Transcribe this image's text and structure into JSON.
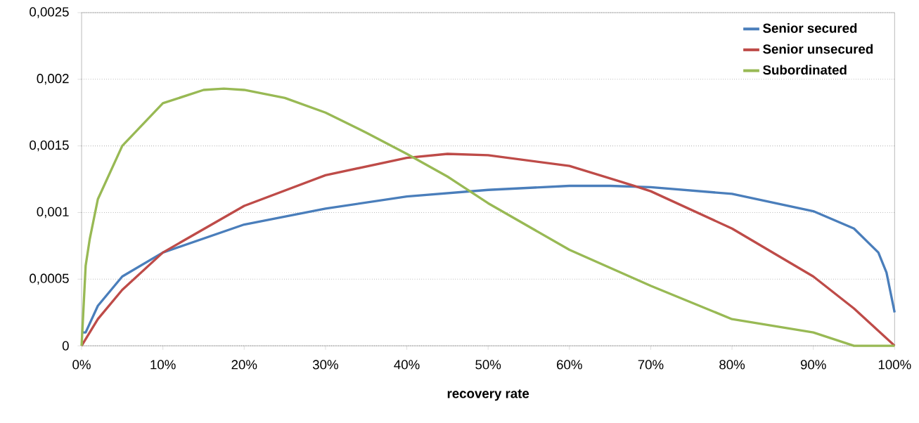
{
  "chart_data": {
    "type": "line",
    "xlabel": "recovery rate",
    "xlim": [
      0,
      1
    ],
    "ylim": [
      0,
      0.0025
    ],
    "xticks": [
      {
        "value": 0,
        "label": "0%"
      },
      {
        "value": 0.1,
        "label": "10%"
      },
      {
        "value": 0.2,
        "label": "20%"
      },
      {
        "value": 0.3,
        "label": "30%"
      },
      {
        "value": 0.4,
        "label": "40%"
      },
      {
        "value": 0.5,
        "label": "50%"
      },
      {
        "value": 0.6,
        "label": "60%"
      },
      {
        "value": 0.7,
        "label": "70%"
      },
      {
        "value": 0.8,
        "label": "80%"
      },
      {
        "value": 0.9,
        "label": "90%"
      },
      {
        "value": 1,
        "label": "100%"
      }
    ],
    "yticks": [
      0,
      {
        "value": 0.0005,
        "label": "0,0005"
      },
      {
        "value": 0.001,
        "label": "0,001"
      },
      {
        "value": 0.0015,
        "label": "0,0015"
      },
      {
        "value": 0.002,
        "label": "0,002"
      },
      {
        "value": 0.0025,
        "label": "0,0025"
      }
    ],
    "grid": "y",
    "legend": "top right",
    "series": [
      {
        "name": "Senior secured",
        "color": "#4a7ebb",
        "x": [
          0,
          0.005,
          0.02,
          0.05,
          0.1,
          0.2,
          0.3,
          0.4,
          0.5,
          0.6,
          0.65,
          0.7,
          0.8,
          0.9,
          0.95,
          0.98,
          0.99,
          1
        ],
        "values": [
          0.0001,
          0.0001,
          0.0003,
          0.00052,
          0.0007,
          0.00091,
          0.00103,
          0.00112,
          0.00117,
          0.0012,
          0.0012,
          0.00119,
          0.00114,
          0.00101,
          0.00088,
          0.0007,
          0.00055,
          0.00025
        ]
      },
      {
        "name": "Senior unsecured",
        "color": "#be4b48",
        "x": [
          0,
          0.02,
          0.05,
          0.1,
          0.2,
          0.3,
          0.4,
          0.45,
          0.5,
          0.6,
          0.68,
          0.7,
          0.8,
          0.9,
          0.95,
          1
        ],
        "values": [
          0,
          0.0002,
          0.00042,
          0.0007,
          0.00105,
          0.00128,
          0.00141,
          0.00144,
          0.00143,
          0.00135,
          0.0012,
          0.00116,
          0.00088,
          0.00052,
          0.00028,
          0
        ]
      },
      {
        "name": "Subordinated",
        "color": "#98b954",
        "x": [
          0,
          0.005,
          0.01,
          0.02,
          0.05,
          0.1,
          0.15,
          0.175,
          0.2,
          0.25,
          0.3,
          0.35,
          0.4,
          0.45,
          0.5,
          0.6,
          0.7,
          0.8,
          0.9,
          0.95,
          1
        ],
        "values": [
          0,
          0.0006,
          0.0008,
          0.0011,
          0.0015,
          0.00182,
          0.00192,
          0.00193,
          0.00192,
          0.00186,
          0.00175,
          0.0016,
          0.00144,
          0.00127,
          0.00107,
          0.00072,
          0.00045,
          0.0002,
          0.0001,
          0,
          0
        ]
      }
    ]
  }
}
